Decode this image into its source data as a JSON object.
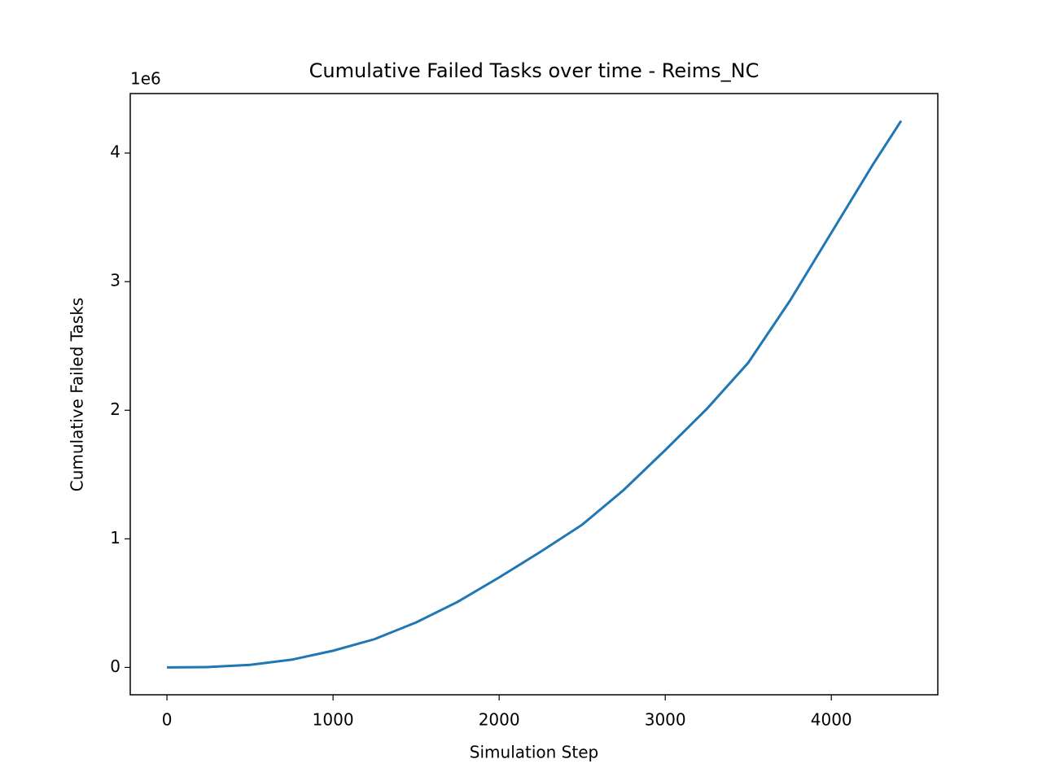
{
  "chart_data": {
    "type": "line",
    "title": "Cumulative Failed Tasks over time - Reims_NC",
    "x_label": "Simulation Step",
    "y_label": "Cumulative Failed Tasks",
    "y_offset_label": "1e6",
    "x": [
      0,
      250,
      500,
      750,
      1000,
      1250,
      1500,
      1750,
      2000,
      2250,
      2500,
      2750,
      3000,
      3250,
      3500,
      3750,
      4000,
      4250,
      4420
    ],
    "series": [
      {
        "name": "Cumulative Failed Tasks",
        "color": "#1f77b4",
        "values": [
          0,
          3000,
          20000,
          60000,
          130000,
          220000,
          350000,
          510000,
          700000,
          900000,
          1110000,
          1380000,
          1690000,
          2010000,
          2370000,
          2850000,
          3380000,
          3910000,
          4250000
        ]
      }
    ],
    "xlim": [
      -221,
      4641
    ],
    "ylim": [
      -212500,
      4462500
    ],
    "xticks": [
      0,
      1000,
      2000,
      3000,
      4000
    ],
    "yticks": [
      {
        "value": 0,
        "label": "0"
      },
      {
        "value": 1000000,
        "label": "1"
      },
      {
        "value": 2000000,
        "label": "2"
      },
      {
        "value": 3000000,
        "label": "3"
      },
      {
        "value": 4000000,
        "label": "4"
      }
    ],
    "grid": false
  }
}
